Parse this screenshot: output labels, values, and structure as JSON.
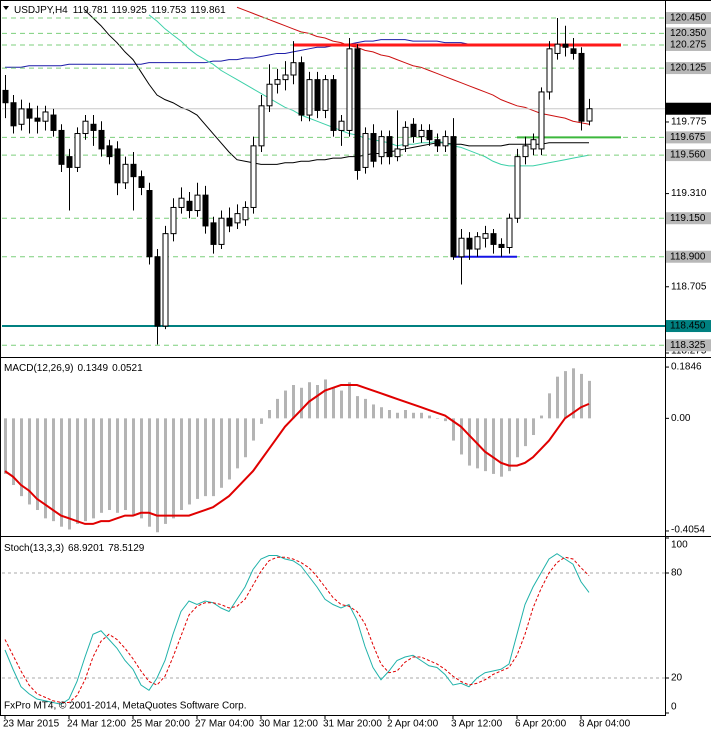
{
  "chart_data": [
    {
      "type": "candlestick",
      "title": "USDJPY,H4",
      "categories": [
        "23 Mar 2015",
        null,
        null,
        null,
        null,
        null,
        null,
        null,
        "24 Mar 12:00",
        null,
        null,
        null,
        null,
        null,
        null,
        null,
        "25 Mar 20:00",
        null,
        null,
        null,
        null,
        null,
        null,
        null,
        "27 Mar 04:00",
        null,
        null,
        null,
        null,
        null,
        null,
        null,
        "30 Mar 12:00",
        null,
        null,
        null,
        null,
        null,
        null,
        null,
        "31 Mar 20:00",
        null,
        null,
        null,
        null,
        null,
        null,
        null,
        "2 Apr 04:00",
        null,
        null,
        null,
        null,
        null,
        null,
        null,
        "3 Apr 12:00",
        null,
        null,
        null,
        null,
        null,
        null,
        null,
        "6 Apr 20:00",
        null,
        null,
        null,
        null,
        null,
        null,
        null,
        "8 Apr 04:00",
        null
      ],
      "open": [
        119.98,
        119.9,
        119.76,
        119.86,
        119.8,
        119.78,
        119.82,
        119.72,
        119.55,
        119.48,
        119.7,
        119.76,
        119.72,
        119.62,
        119.6,
        119.38,
        119.5,
        119.42,
        119.33,
        118.9,
        118.45,
        119.05,
        119.22,
        119.26,
        119.2,
        119.3,
        119.12,
        118.98,
        119.15,
        119.12,
        119.14,
        119.22,
        119.62,
        119.88,
        120.02,
        120.05,
        120.08,
        120.16,
        119.82,
        120.05,
        119.85,
        120.05,
        119.72,
        119.72,
        120.25,
        119.48,
        119.7,
        119.55,
        119.68,
        119.55,
        119.62,
        119.76,
        119.68,
        119.72,
        119.66,
        119.62,
        119.68,
        118.9,
        119.02,
        118.95,
        119.02,
        119.05,
        118.98,
        118.96,
        119.15,
        119.55,
        119.6,
        119.6,
        119.97,
        120.22,
        120.28,
        120.25,
        120.22,
        119.781
      ],
      "high": [
        120.08,
        119.95,
        119.92,
        119.9,
        119.88,
        119.88,
        119.86,
        119.76,
        119.6,
        119.74,
        119.82,
        119.82,
        119.78,
        119.66,
        119.65,
        119.55,
        119.58,
        119.46,
        119.38,
        118.95,
        119.1,
        119.28,
        119.35,
        119.32,
        119.38,
        119.36,
        119.16,
        119.2,
        119.22,
        119.24,
        119.26,
        119.68,
        119.95,
        120.15,
        120.12,
        120.17,
        120.3,
        120.2,
        120.1,
        120.1,
        120.08,
        120.08,
        119.82,
        120.32,
        120.28,
        119.74,
        119.76,
        119.72,
        119.72,
        119.85,
        119.78,
        119.8,
        119.76,
        119.76,
        119.7,
        119.72,
        119.8,
        119.08,
        119.06,
        119.06,
        119.1,
        119.08,
        119.02,
        119.18,
        119.6,
        119.68,
        119.7,
        120.0,
        120.3,
        120.45,
        120.4,
        120.32,
        120.26,
        119.925
      ],
      "low": [
        119.8,
        119.7,
        119.72,
        119.7,
        119.7,
        119.72,
        119.68,
        119.45,
        119.2,
        119.45,
        119.66,
        119.62,
        119.55,
        119.5,
        119.3,
        119.34,
        119.2,
        119.3,
        118.85,
        118.33,
        118.43,
        119.0,
        119.18,
        119.15,
        119.16,
        119.05,
        118.92,
        118.95,
        119.06,
        119.08,
        119.1,
        119.18,
        119.58,
        119.84,
        119.96,
        119.98,
        120.02,
        119.78,
        119.78,
        119.8,
        119.8,
        119.68,
        119.62,
        119.68,
        119.4,
        119.44,
        119.48,
        119.5,
        119.5,
        119.52,
        119.58,
        119.64,
        119.64,
        119.62,
        119.58,
        119.58,
        118.88,
        118.72,
        118.88,
        118.9,
        118.96,
        118.92,
        118.9,
        118.92,
        119.12,
        119.5,
        119.56,
        119.56,
        119.92,
        120.18,
        120.2,
        120.18,
        119.72,
        119.753
      ],
      "close": [
        119.9,
        119.75,
        119.86,
        119.8,
        119.78,
        119.84,
        119.72,
        119.5,
        119.48,
        119.7,
        119.78,
        119.72,
        119.6,
        119.55,
        119.38,
        119.5,
        119.42,
        119.35,
        118.9,
        118.45,
        119.05,
        119.22,
        119.28,
        119.2,
        119.3,
        119.1,
        118.98,
        119.15,
        119.1,
        119.18,
        119.22,
        119.62,
        119.88,
        120.02,
        120.05,
        120.08,
        120.16,
        119.82,
        120.05,
        119.85,
        120.05,
        119.72,
        119.78,
        120.25,
        119.46,
        119.7,
        119.52,
        119.68,
        119.55,
        119.6,
        119.74,
        119.68,
        119.72,
        119.66,
        119.62,
        119.68,
        118.9,
        119.02,
        118.95,
        119.03,
        119.05,
        118.98,
        118.96,
        119.15,
        119.55,
        119.62,
        119.66,
        119.97,
        120.25,
        120.28,
        120.26,
        120.22,
        119.78,
        119.861
      ],
      "series": [
        {
          "color": "#cc1010",
          "values": [
            null,
            null,
            null,
            null,
            null,
            null,
            null,
            null,
            null,
            null,
            null,
            null,
            null,
            null,
            null,
            null,
            null,
            null,
            null,
            null,
            null,
            null,
            null,
            null,
            null,
            null,
            null,
            null,
            null,
            120.52,
            120.5,
            120.48,
            120.46,
            120.44,
            120.42,
            120.4,
            120.38,
            120.36,
            120.35,
            120.33,
            120.32,
            120.3,
            120.29,
            120.27,
            120.26,
            120.24,
            120.23,
            120.21,
            120.2,
            120.18,
            120.16,
            120.14,
            120.13,
            120.11,
            120.09,
            120.07,
            120.05,
            120.03,
            120.01,
            119.99,
            119.97,
            119.95,
            119.92,
            119.9,
            119.88,
            119.87,
            119.85,
            119.83,
            119.82,
            119.81,
            119.8,
            119.78,
            119.77,
            119.76
          ]
        },
        {
          "color": "#1c1ca8",
          "values": [
            120.13,
            120.13,
            120.13,
            120.14,
            120.14,
            120.14,
            120.14,
            120.14,
            120.15,
            120.15,
            120.15,
            120.15,
            120.15,
            120.15,
            120.15,
            120.15,
            120.15,
            120.15,
            120.16,
            120.16,
            120.16,
            120.16,
            120.16,
            120.16,
            120.16,
            120.16,
            120.17,
            120.17,
            120.18,
            120.18,
            120.19,
            120.19,
            120.2,
            120.21,
            120.22,
            120.22,
            120.23,
            120.24,
            120.25,
            120.26,
            120.26,
            120.27,
            120.27,
            120.28,
            120.29,
            120.3,
            120.3,
            120.31,
            120.31,
            120.31,
            120.31,
            120.3,
            120.3,
            120.3,
            120.3,
            120.29,
            120.29,
            120.29,
            120.28,
            120.28,
            120.28,
            120.27,
            120.27,
            120.27,
            120.27,
            120.27,
            120.27,
            120.27,
            120.27,
            120.27,
            120.27,
            120.27,
            120.27,
            120.27
          ]
        },
        {
          "color": "#000000",
          "values": [
            null,
            null,
            null,
            null,
            null,
            null,
            null,
            null,
            null,
            null,
            120.5,
            120.45,
            120.4,
            120.34,
            120.29,
            120.23,
            120.18,
            120.1,
            120.02,
            119.95,
            119.92,
            119.9,
            119.87,
            119.85,
            119.82,
            119.76,
            119.7,
            119.64,
            119.58,
            119.53,
            119.52,
            119.51,
            119.5,
            119.5,
            119.5,
            119.51,
            119.51,
            119.52,
            119.52,
            119.53,
            119.53,
            119.54,
            119.54,
            119.55,
            119.55,
            119.56,
            119.57,
            119.57,
            119.58,
            119.59,
            119.6,
            119.61,
            119.62,
            119.63,
            119.64,
            119.64,
            119.63,
            119.63,
            119.62,
            119.62,
            119.62,
            119.62,
            119.62,
            119.63,
            119.63,
            119.63,
            119.63,
            119.63,
            119.64,
            119.64,
            119.64,
            119.64,
            119.64,
            119.64
          ]
        },
        {
          "color": "#3cd0a8",
          "values": [
            null,
            null,
            null,
            null,
            null,
            null,
            null,
            null,
            null,
            null,
            null,
            null,
            null,
            null,
            null,
            null,
            null,
            null,
            120.47,
            120.43,
            120.38,
            120.34,
            120.3,
            120.25,
            120.21,
            120.18,
            120.15,
            120.11,
            120.08,
            120.05,
            120.02,
            119.99,
            119.96,
            119.93,
            119.9,
            119.87,
            119.85,
            119.82,
            119.8,
            119.78,
            119.76,
            119.74,
            119.72,
            119.7,
            119.69,
            119.67,
            119.66,
            119.65,
            119.64,
            119.62,
            119.63,
            119.63,
            119.64,
            119.64,
            119.65,
            119.64,
            119.62,
            119.61,
            119.59,
            119.57,
            119.55,
            119.52,
            119.5,
            119.49,
            119.49,
            119.49,
            119.49,
            119.5,
            119.51,
            119.52,
            119.53,
            119.54,
            119.55,
            119.56
          ]
        }
      ],
      "segments": [
        {
          "value": 120.275,
          "color": "#ff1a1a"
        },
        {
          "value": 119.675,
          "color": "#3cb83c"
        },
        {
          "value": 118.9,
          "color": "#1414e6"
        }
      ],
      "hline": {
        "value": 118.45,
        "label": "118.450",
        "color": "#008080"
      },
      "price_levels": [
        {
          "value": 120.45,
          "label": "120.450"
        },
        {
          "value": 120.35,
          "label": "120.350"
        },
        120.275,
        120.125,
        119.675,
        {
          "value": 119.56,
          "label": "119.560"
        },
        {
          "value": 119.15,
          "label": "119.150"
        },
        {
          "value": 118.9,
          "label": "118.900"
        },
        118.325
      ],
      "level_color": "#7ccf7c",
      "ylim": [
        118.249,
        120.567
      ],
      "yticks": [
        119.775,
        {
          "value": 119.31,
          "label": "119.310"
        },
        118.705,
        118.275
      ]
    },
    {
      "type": "macd",
      "title": "MACD(12,26,9)",
      "series": [
        {
          "style": "histogram",
          "color": "#b4b4b4",
          "values": [
            -0.2,
            -0.24,
            -0.28,
            -0.31,
            -0.33,
            -0.36,
            -0.37,
            -0.39,
            -0.4,
            -0.38,
            -0.37,
            -0.36,
            -0.34,
            -0.33,
            -0.34,
            -0.33,
            -0.35,
            -0.36,
            -0.39,
            -0.41,
            -0.38,
            -0.36,
            -0.33,
            -0.31,
            -0.29,
            -0.28,
            -0.28,
            -0.25,
            -0.22,
            -0.18,
            -0.14,
            -0.08,
            -0.02,
            0.03,
            0.07,
            0.1,
            0.12,
            0.11,
            0.13,
            0.12,
            0.14,
            0.11,
            0.1,
            0.13,
            0.08,
            0.07,
            0.05,
            0.04,
            0.03,
            0.02,
            0.03,
            0.02,
            0.02,
            0.01,
            0.0,
            -0.01,
            -0.08,
            -0.13,
            -0.17,
            -0.18,
            -0.19,
            -0.2,
            -0.21,
            -0.19,
            -0.14,
            -0.1,
            -0.06,
            0.01,
            0.09,
            0.15,
            0.17,
            0.18,
            0.16,
            0.1349
          ]
        },
        {
          "style": "line",
          "color": "#e00000",
          "values": [
            -0.19,
            -0.21,
            -0.24,
            -0.26,
            -0.29,
            -0.31,
            -0.33,
            -0.35,
            -0.36,
            -0.37,
            -0.38,
            -0.38,
            -0.37,
            -0.37,
            -0.36,
            -0.35,
            -0.35,
            -0.34,
            -0.34,
            -0.35,
            -0.35,
            -0.35,
            -0.35,
            -0.35,
            -0.34,
            -0.33,
            -0.32,
            -0.3,
            -0.28,
            -0.25,
            -0.22,
            -0.19,
            -0.15,
            -0.11,
            -0.07,
            -0.03,
            0.0,
            0.03,
            0.06,
            0.08,
            0.1,
            0.11,
            0.12,
            0.12,
            0.12,
            0.11,
            0.1,
            0.09,
            0.08,
            0.07,
            0.06,
            0.05,
            0.04,
            0.03,
            0.02,
            0.01,
            -0.01,
            -0.03,
            -0.06,
            -0.09,
            -0.12,
            -0.14,
            -0.16,
            -0.17,
            -0.17,
            -0.16,
            -0.14,
            -0.11,
            -0.08,
            -0.04,
            0.0,
            0.02,
            0.04,
            0.0521
          ]
        }
      ],
      "ylim": [
        -0.4235,
        0.2172
      ],
      "yticks": [
        0.1846,
        {
          "value": 0,
          "label": "0.00"
        },
        -0.4054
      ]
    },
    {
      "type": "stochastic",
      "title": "Stoch(13,3,3)",
      "series": [
        {
          "color": "#20b2aa",
          "dash": false,
          "values": [
            36,
            25,
            15,
            11,
            8,
            7,
            6,
            5,
            8,
            18,
            32,
            45,
            47,
            42,
            37,
            30,
            25,
            16,
            13,
            20,
            30,
            45,
            58,
            64,
            62,
            64,
            63,
            60,
            58,
            65,
            72,
            82,
            88,
            90,
            90,
            88,
            87,
            84,
            78,
            72,
            65,
            62,
            60,
            62,
            53,
            38,
            26,
            19,
            24,
            30,
            32,
            33,
            30,
            27,
            26,
            22,
            16,
            17,
            15,
            20,
            23,
            24,
            25,
            28,
            45,
            62,
            72,
            80,
            88,
            91,
            88,
            85,
            75,
            68.9201
          ]
        },
        {
          "color": "#e00000",
          "dash": true,
          "values": [
            42,
            33,
            24,
            16,
            11,
            9,
            7,
            6,
            6,
            10,
            19,
            32,
            41,
            45,
            42,
            37,
            31,
            24,
            18,
            16,
            21,
            32,
            44,
            56,
            61,
            63,
            63,
            62,
            60,
            61,
            65,
            73,
            81,
            87,
            89,
            89,
            88,
            86,
            83,
            78,
            72,
            66,
            62,
            61,
            58,
            51,
            39,
            28,
            23,
            24,
            29,
            32,
            32,
            30,
            28,
            25,
            21,
            18,
            16,
            17,
            19,
            22,
            24,
            26,
            33,
            45,
            60,
            71,
            80,
            86,
            89,
            88,
            83,
            78.5129
          ]
        }
      ],
      "levels": [
        80,
        20
      ],
      "ylim": [
        0,
        100
      ],
      "yticks": [
        100,
        80,
        20,
        0
      ],
      "annotation": "FxPro MT4, © 2001-2014, MetaQuotes Software Corp."
    }
  ]
}
